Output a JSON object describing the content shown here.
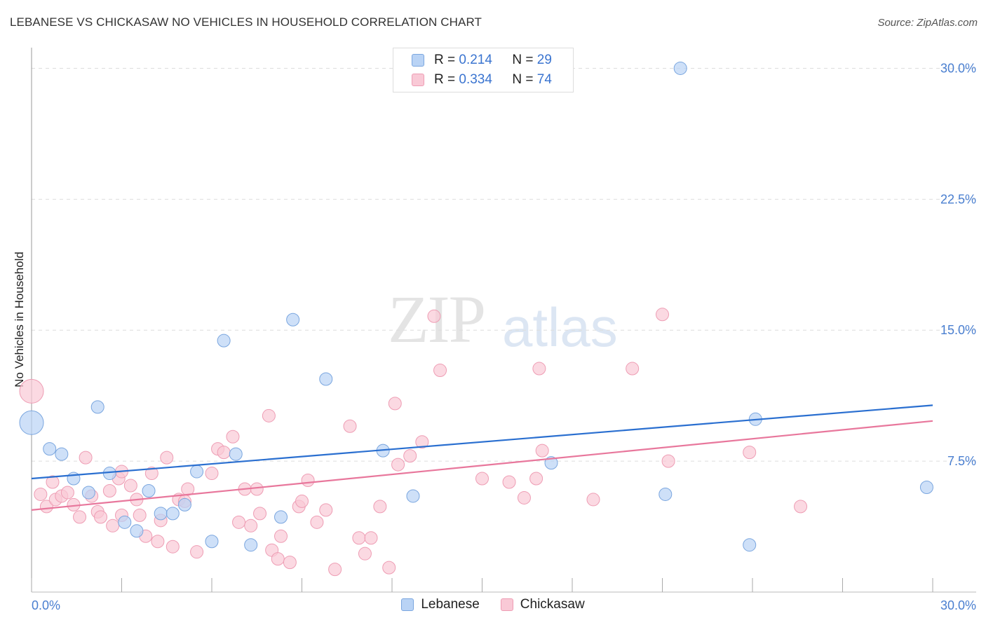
{
  "header": {
    "title": "LEBANESE VS CHICKASAW NO VEHICLES IN HOUSEHOLD CORRELATION CHART",
    "source": "Source: ZipAtlas.com"
  },
  "watermark": {
    "zip": "ZIP",
    "atlas": "atlas"
  },
  "legend": {
    "rows": [
      {
        "r_key": "R =",
        "r_val": "0.214",
        "n_key": "N =",
        "n_val": "29"
      },
      {
        "r_key": "R =",
        "r_val": "0.334",
        "n_key": "N =",
        "n_val": "74"
      }
    ]
  },
  "colors": {
    "lebanese_fill": "#b9d3f5",
    "lebanese_stroke": "#7aa6df",
    "lebanese_line": "#2a6fd0",
    "chickasaw_fill": "#f9c9d6",
    "chickasaw_stroke": "#ee9db4",
    "chickasaw_line": "#e8779c",
    "tick": "#4a7fd0",
    "grid": "#dddddd"
  },
  "chart_data": {
    "type": "scatter",
    "title": "LEBANESE VS CHICKASAW NO VEHICLES IN HOUSEHOLD CORRELATION CHART",
    "xlabel": "",
    "ylabel": "No Vehicles in Household",
    "xlim": [
      0,
      30
    ],
    "ylim": [
      0,
      30.7
    ],
    "x_tick_labels": [
      "0.0%",
      "30.0%"
    ],
    "y_ticks": [
      7.5,
      15.0,
      22.5,
      30.0
    ],
    "y_tick_labels": [
      "7.5%",
      "15.0%",
      "22.5%",
      "30.0%"
    ],
    "grid": true,
    "legend_position": "top-center",
    "series": [
      {
        "name": "Lebanese",
        "R": 0.214,
        "N": 29,
        "trend": {
          "x": [
            0,
            30
          ],
          "y": [
            6.5,
            10.7
          ]
        },
        "points": [
          {
            "x": 0.0,
            "y": 9.7,
            "big": true
          },
          {
            "x": 0.6,
            "y": 8.2
          },
          {
            "x": 1.0,
            "y": 7.9
          },
          {
            "x": 1.4,
            "y": 6.5
          },
          {
            "x": 1.9,
            "y": 5.7
          },
          {
            "x": 2.2,
            "y": 10.6
          },
          {
            "x": 2.6,
            "y": 6.8
          },
          {
            "x": 3.1,
            "y": 4.0
          },
          {
            "x": 3.5,
            "y": 3.5
          },
          {
            "x": 3.9,
            "y": 5.8
          },
          {
            "x": 4.3,
            "y": 4.5
          },
          {
            "x": 4.7,
            "y": 4.5
          },
          {
            "x": 5.1,
            "y": 5.0
          },
          {
            "x": 5.5,
            "y": 6.9
          },
          {
            "x": 6.0,
            "y": 2.9
          },
          {
            "x": 6.4,
            "y": 14.4
          },
          {
            "x": 6.8,
            "y": 7.9
          },
          {
            "x": 7.3,
            "y": 2.7
          },
          {
            "x": 8.3,
            "y": 4.3
          },
          {
            "x": 8.7,
            "y": 15.6
          },
          {
            "x": 9.8,
            "y": 12.2
          },
          {
            "x": 11.7,
            "y": 8.1
          },
          {
            "x": 12.7,
            "y": 5.5
          },
          {
            "x": 17.3,
            "y": 7.4
          },
          {
            "x": 21.1,
            "y": 5.6
          },
          {
            "x": 21.6,
            "y": 30.0
          },
          {
            "x": 23.9,
            "y": 2.7
          },
          {
            "x": 24.1,
            "y": 9.9
          },
          {
            "x": 29.8,
            "y": 6.0
          }
        ]
      },
      {
        "name": "Chickasaw",
        "R": 0.334,
        "N": 74,
        "trend": {
          "x": [
            0,
            30
          ],
          "y": [
            4.7,
            9.8
          ]
        },
        "points": [
          {
            "x": 0.0,
            "y": 11.5,
            "big": true
          },
          {
            "x": 0.3,
            "y": 5.6
          },
          {
            "x": 0.5,
            "y": 4.9
          },
          {
            "x": 0.7,
            "y": 6.3
          },
          {
            "x": 0.8,
            "y": 5.3
          },
          {
            "x": 1.0,
            "y": 5.5
          },
          {
            "x": 1.2,
            "y": 5.7
          },
          {
            "x": 1.4,
            "y": 5.0
          },
          {
            "x": 1.6,
            "y": 4.3
          },
          {
            "x": 1.8,
            "y": 7.7
          },
          {
            "x": 2.0,
            "y": 5.5
          },
          {
            "x": 2.2,
            "y": 4.6
          },
          {
            "x": 2.3,
            "y": 4.3
          },
          {
            "x": 2.6,
            "y": 5.8
          },
          {
            "x": 2.7,
            "y": 3.8
          },
          {
            "x": 2.9,
            "y": 6.5
          },
          {
            "x": 3.0,
            "y": 4.4
          },
          {
            "x": 3.0,
            "y": 6.9
          },
          {
            "x": 3.3,
            "y": 6.1
          },
          {
            "x": 3.5,
            "y": 5.3
          },
          {
            "x": 3.6,
            "y": 4.4
          },
          {
            "x": 3.8,
            "y": 3.2
          },
          {
            "x": 4.0,
            "y": 6.8
          },
          {
            "x": 4.2,
            "y": 2.9
          },
          {
            "x": 4.3,
            "y": 4.1
          },
          {
            "x": 4.5,
            "y": 7.7
          },
          {
            "x": 4.7,
            "y": 2.6
          },
          {
            "x": 4.9,
            "y": 5.3
          },
          {
            "x": 5.1,
            "y": 5.2
          },
          {
            "x": 5.2,
            "y": 5.9
          },
          {
            "x": 5.5,
            "y": 2.3
          },
          {
            "x": 6.0,
            "y": 6.8
          },
          {
            "x": 6.2,
            "y": 8.2
          },
          {
            "x": 6.4,
            "y": 8.0
          },
          {
            "x": 6.7,
            "y": 8.9
          },
          {
            "x": 6.9,
            "y": 4.0
          },
          {
            "x": 7.1,
            "y": 5.9
          },
          {
            "x": 7.3,
            "y": 3.8
          },
          {
            "x": 7.5,
            "y": 5.9
          },
          {
            "x": 7.6,
            "y": 4.5
          },
          {
            "x": 7.9,
            "y": 10.1
          },
          {
            "x": 8.0,
            "y": 2.4
          },
          {
            "x": 8.2,
            "y": 1.9
          },
          {
            "x": 8.3,
            "y": 3.2
          },
          {
            "x": 8.6,
            "y": 1.7
          },
          {
            "x": 8.9,
            "y": 4.9
          },
          {
            "x": 9.0,
            "y": 5.2
          },
          {
            "x": 9.2,
            "y": 6.4
          },
          {
            "x": 9.5,
            "y": 4.0
          },
          {
            "x": 9.8,
            "y": 4.7
          },
          {
            "x": 10.1,
            "y": 1.3
          },
          {
            "x": 10.6,
            "y": 9.5
          },
          {
            "x": 10.9,
            "y": 3.1
          },
          {
            "x": 11.1,
            "y": 2.2
          },
          {
            "x": 11.3,
            "y": 3.1
          },
          {
            "x": 11.6,
            "y": 4.9
          },
          {
            "x": 11.9,
            "y": 1.4
          },
          {
            "x": 12.1,
            "y": 10.8
          },
          {
            "x": 12.2,
            "y": 7.3
          },
          {
            "x": 12.6,
            "y": 7.8
          },
          {
            "x": 13.0,
            "y": 8.6
          },
          {
            "x": 13.4,
            "y": 15.8
          },
          {
            "x": 13.6,
            "y": 12.7
          },
          {
            "x": 15.0,
            "y": 6.5
          },
          {
            "x": 15.9,
            "y": 6.3
          },
          {
            "x": 16.4,
            "y": 5.4
          },
          {
            "x": 16.8,
            "y": 6.5
          },
          {
            "x": 16.9,
            "y": 12.8
          },
          {
            "x": 17.0,
            "y": 8.1
          },
          {
            "x": 18.7,
            "y": 5.3
          },
          {
            "x": 20.0,
            "y": 12.8
          },
          {
            "x": 21.0,
            "y": 15.9
          },
          {
            "x": 21.2,
            "y": 7.5
          },
          {
            "x": 23.9,
            "y": 8.0
          },
          {
            "x": 25.6,
            "y": 4.9
          }
        ]
      }
    ]
  }
}
